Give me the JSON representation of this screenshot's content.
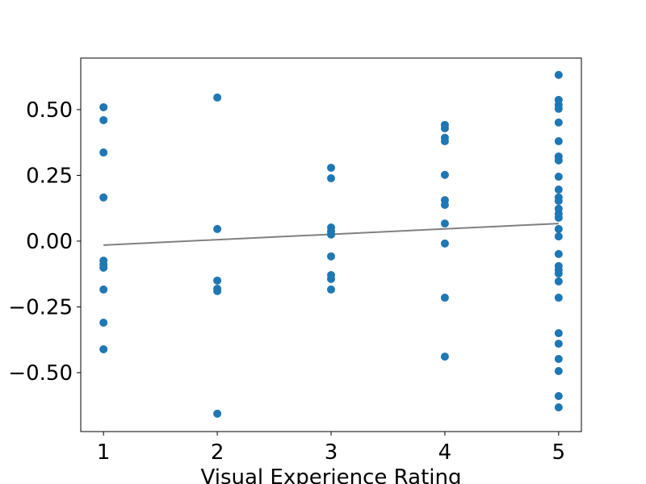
{
  "chart_data": {
    "type": "scatter",
    "xlabel": "Visual Experience Rating",
    "color": "#1f77b4",
    "x": [
      1,
      1,
      1,
      1,
      1,
      1,
      1,
      1,
      1,
      1,
      2,
      2,
      2,
      2,
      2,
      2,
      3,
      3,
      3,
      3,
      3,
      3,
      3,
      3,
      3,
      4,
      4,
      4,
      4,
      4,
      4,
      4,
      4,
      4,
      4,
      4,
      5,
      5,
      5,
      5,
      5,
      5,
      5,
      5,
      5,
      5,
      5,
      5,
      5,
      5,
      5,
      5,
      5,
      5,
      5,
      5,
      5,
      5,
      5,
      5,
      5,
      5,
      5,
      5,
      5
    ],
    "y": [
      0.509,
      0.46,
      0.337,
      0.166,
      -0.074,
      -0.089,
      -0.101,
      -0.184,
      -0.31,
      -0.411,
      0.546,
      0.046,
      -0.15,
      -0.181,
      -0.19,
      -0.656,
      0.279,
      0.239,
      0.052,
      0.037,
      0.025,
      -0.058,
      -0.129,
      -0.144,
      -0.184,
      0.442,
      0.429,
      0.393,
      0.38,
      0.252,
      0.156,
      0.138,
      0.067,
      -0.009,
      -0.215,
      -0.439,
      0.632,
      0.537,
      0.518,
      0.503,
      0.451,
      0.38,
      0.322,
      0.307,
      0.245,
      0.196,
      0.166,
      0.153,
      0.123,
      0.104,
      0.089,
      0.046,
      0.018,
      -0.049,
      -0.095,
      -0.11,
      -0.123,
      -0.153,
      -0.215,
      -0.35,
      -0.39,
      -0.448,
      -0.494,
      -0.589,
      -0.632
    ],
    "trend": {
      "x": [
        1,
        5
      ],
      "y": [
        -0.015,
        0.067
      ],
      "color": "#808080"
    },
    "xlim": [
      0.8,
      5.2
    ],
    "ylim": [
      -0.724,
      0.696
    ],
    "xticks": [
      1,
      2,
      3,
      4,
      5
    ],
    "yticks": [
      {
        "value": -0.5,
        "label": "−0.50"
      },
      {
        "value": -0.25,
        "label": "−0.25"
      },
      {
        "value": 0,
        "label": "0.00"
      },
      {
        "value": 0.25,
        "label": "0.25"
      },
      {
        "value": 0.5,
        "label": "0.50"
      }
    ]
  }
}
